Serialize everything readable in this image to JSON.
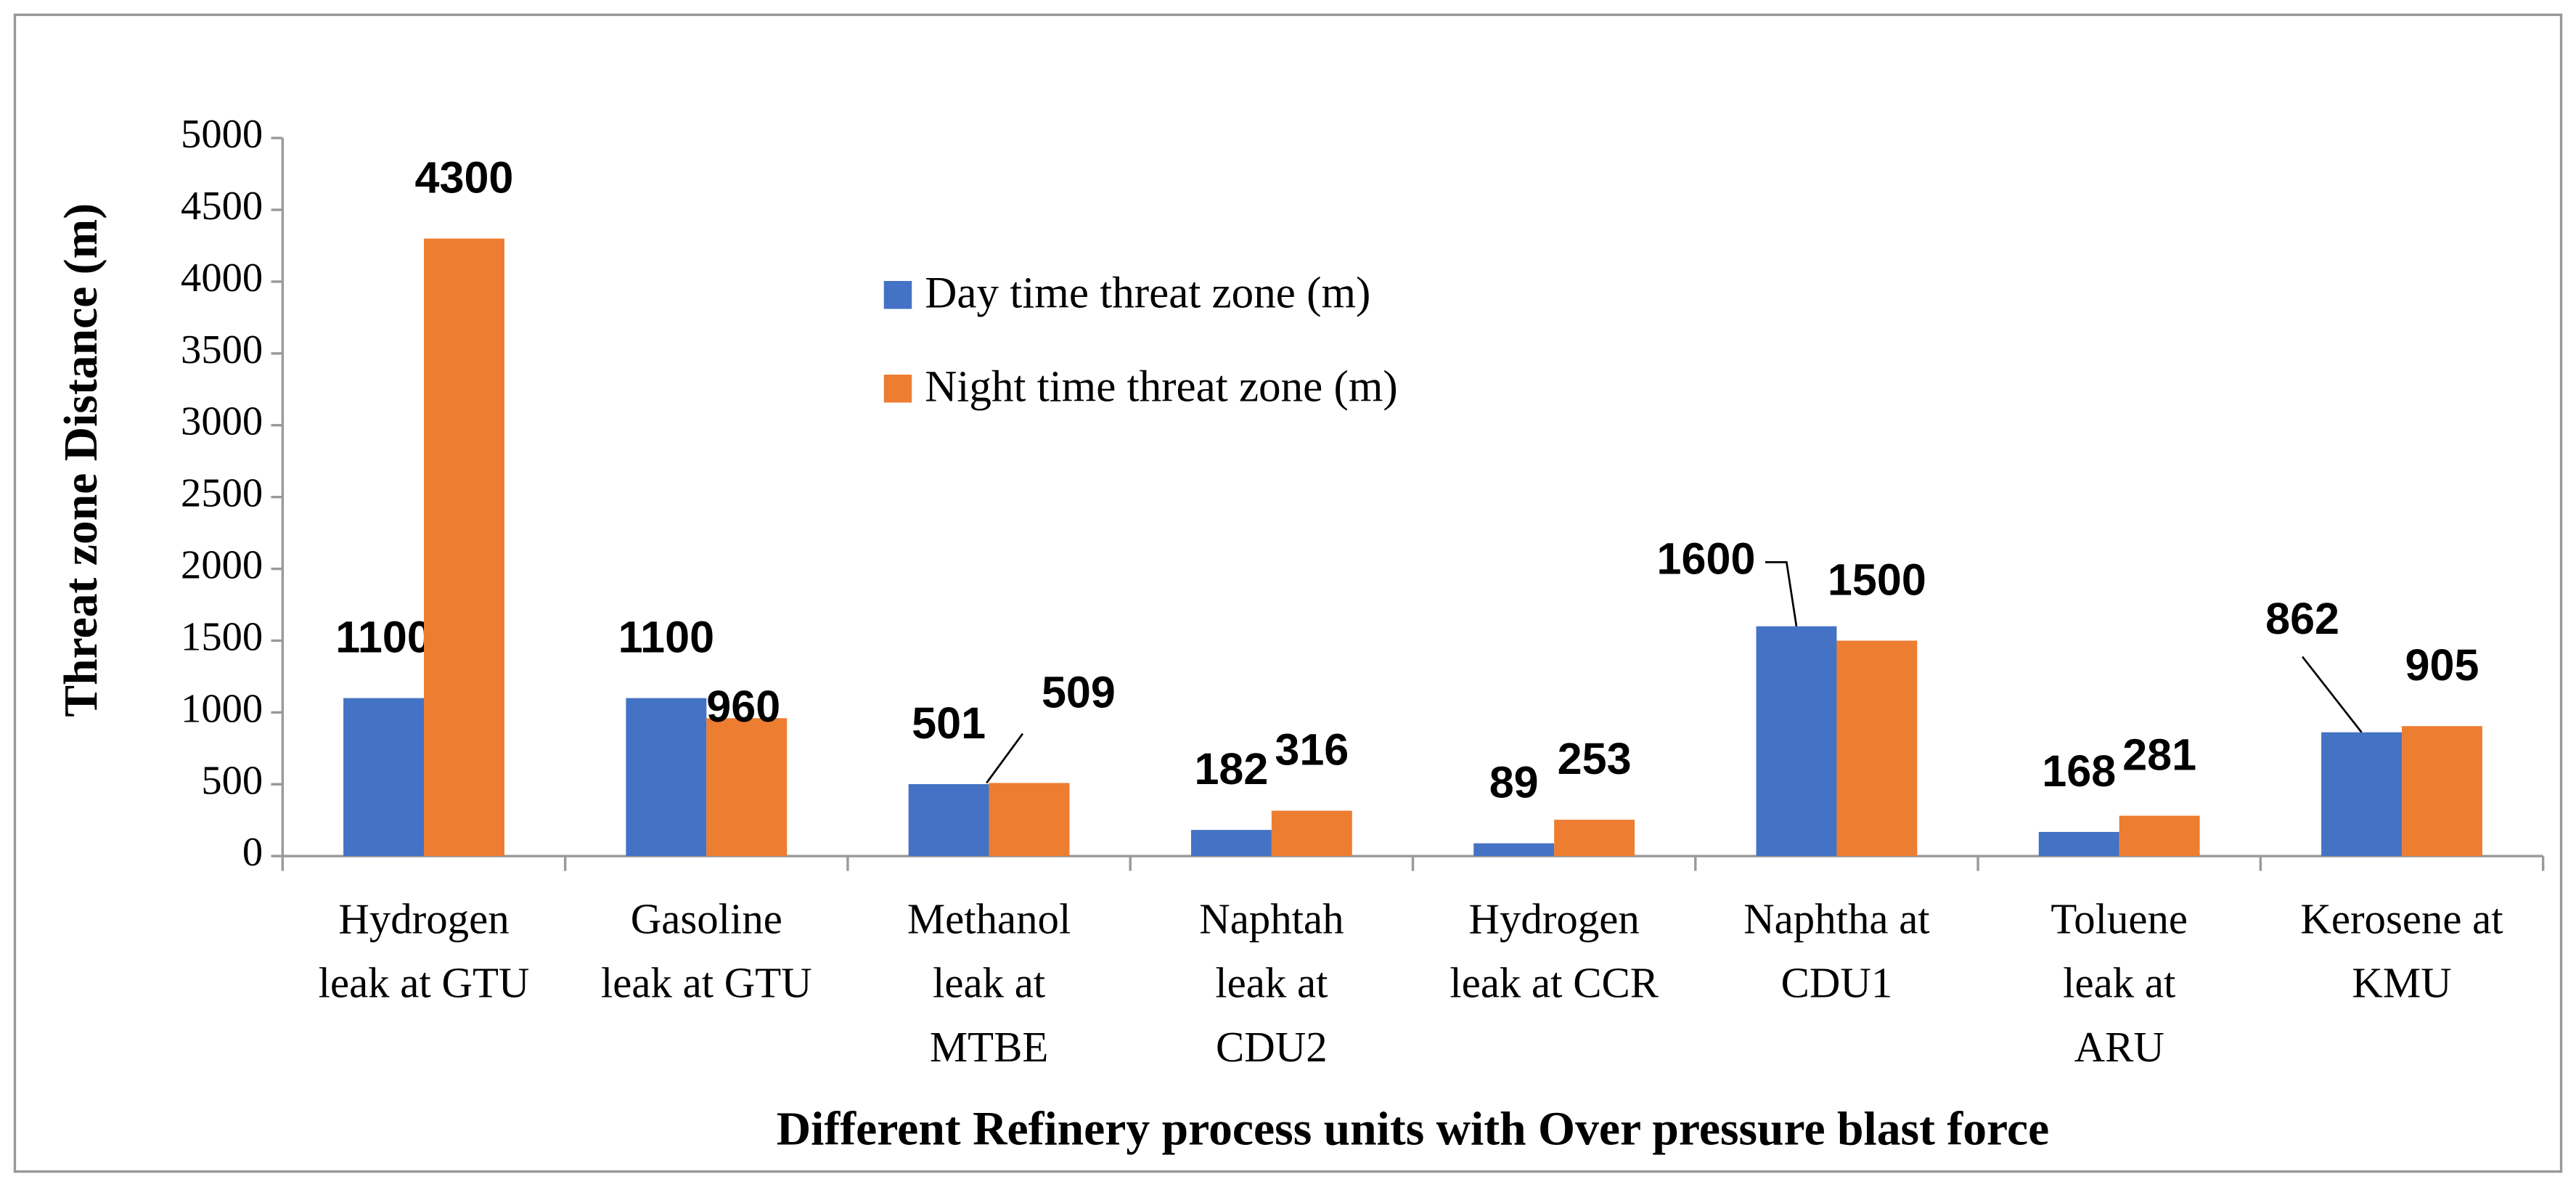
{
  "chart_data": {
    "type": "bar",
    "y_label": "Threat zone Distance (m)",
    "x_label": "Different Refinery process units with Over pressure blast force",
    "categories": [
      [
        "Hydrogen",
        "leak at GTU"
      ],
      [
        "Gasoline",
        "leak at GTU"
      ],
      [
        "Methanol",
        "leak at",
        "MTBE"
      ],
      [
        "Naphtah",
        "leak at",
        "CDU2"
      ],
      [
        "Hydrogen",
        "leak at CCR"
      ],
      [
        "Naphtha at",
        "CDU1"
      ],
      [
        "Toluene",
        "leak at",
        "ARU"
      ],
      [
        "Kerosene at",
        "KMU"
      ]
    ],
    "series": [
      {
        "name": "Day time threat zone (m)",
        "color": "#4472c4",
        "values": [
          1100,
          1100,
          501,
          182,
          89,
          1600,
          168,
          862
        ]
      },
      {
        "name": "Night time threat zone (m)",
        "color": "#ed7d31",
        "values": [
          4300,
          960,
          509,
          316,
          253,
          1500,
          281,
          905
        ]
      }
    ],
    "ylim": [
      0,
      5000
    ],
    "yticks": [
      0,
      500,
      1000,
      1500,
      2000,
      2500,
      3000,
      3500,
      4000,
      4500,
      5000
    ],
    "grid": false,
    "legend": "top-center"
  }
}
